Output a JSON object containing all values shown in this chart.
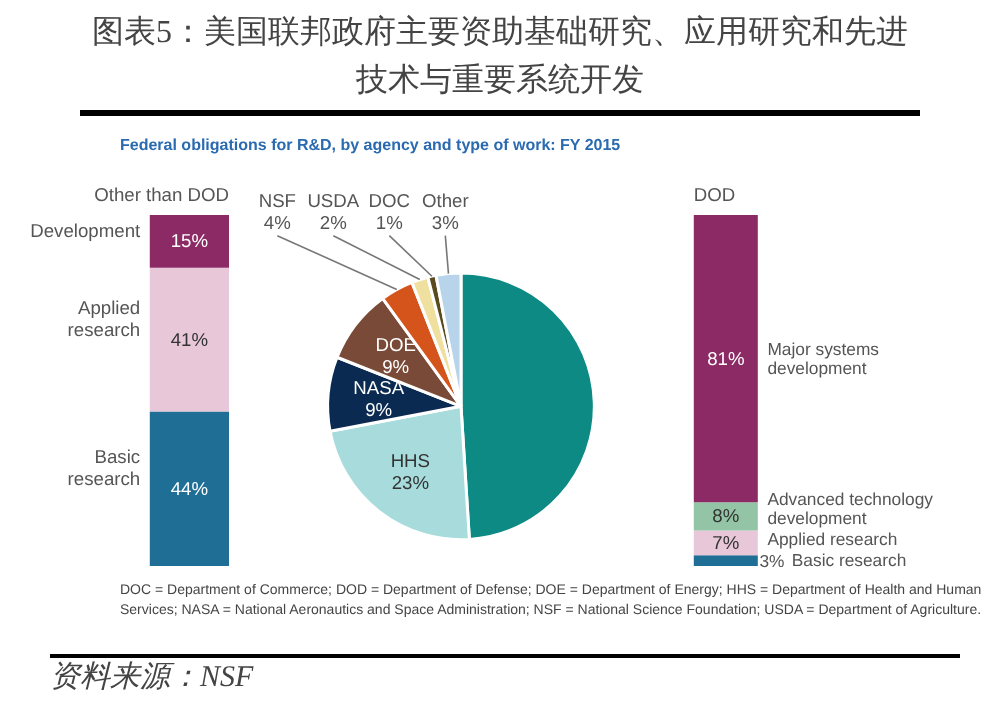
{
  "chart_data": [
    {
      "type": "bar",
      "stacked": true,
      "data_labels": true,
      "categories": [
        "Other than DOD"
      ],
      "series": [
        {
          "name": "Basic research",
          "color": "#1f6e96",
          "values": [
            44
          ],
          "value_labels": [
            "44%"
          ]
        },
        {
          "name": "Applied research",
          "color": "#e8c8d8",
          "values": [
            41
          ],
          "value_labels": [
            "41%"
          ]
        },
        {
          "name": "Development",
          "color": "#8b2a64",
          "values": [
            15
          ],
          "value_labels": [
            "15%"
          ]
        }
      ]
    },
    {
      "type": "pie",
      "title": "图表5：美国联邦政府主要资助基础研究、应用研究和先进技术与重要系统开发",
      "subtitle": "Federal obligations for R&D, by agency and type of work: FY 2015",
      "annotations": [
        "DOC = Department of Commerce; DOD = Department of Defense; DOE = Department of Energy; HHS = Department of Health and Human Services; NASA = National Aeronautics and Space Administration; NSF = National Science Foundation; USDA = Department of Agriculture.",
        "资料来源：NSF"
      ],
      "categories": [
        null,
        "HHS",
        "NASA",
        "DOE",
        "NSF",
        "USDA",
        "DOC",
        "Other"
      ],
      "values": [
        49,
        23,
        9,
        9,
        4,
        2,
        1,
        3
      ],
      "value_labels": [
        null,
        "23%",
        "9%",
        "9%",
        "4%",
        "2%",
        "1%",
        "3%"
      ],
      "colors": [
        "#0e8a85",
        "#a8dcdc",
        "#0b2a52",
        "#7a4a38",
        "#d5541c",
        "#f0e0a0",
        "#5a4a20",
        "#b8d4ea"
      ]
    },
    {
      "type": "bar",
      "stacked": true,
      "data_labels": true,
      "categories": [
        "DOD"
      ],
      "series": [
        {
          "name": "Basic research",
          "color": "#1f6e96",
          "values": [
            3
          ],
          "value_labels": [
            "3%"
          ]
        },
        {
          "name": "Applied research",
          "color": "#e8c8d8",
          "values": [
            7
          ],
          "value_labels": [
            "7%"
          ]
        },
        {
          "name": "Advanced technology development",
          "color": "#93c4a5",
          "values": [
            8
          ],
          "value_labels": [
            "8%"
          ]
        },
        {
          "name": "Major systems development",
          "color": "#8b2a64",
          "values": [
            81
          ],
          "value_labels": [
            "81%"
          ]
        }
      ]
    }
  ]
}
